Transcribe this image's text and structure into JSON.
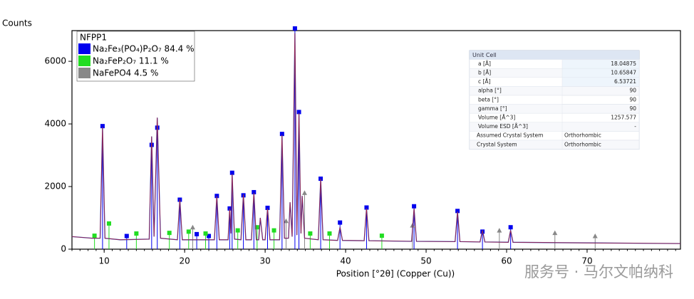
{
  "chart_data": {
    "type": "line",
    "y_label": "Counts",
    "x_label": "Position [°2θ] (Copper (Cu))",
    "legend_title": "NFPP1",
    "xlim": [
      6,
      81.6
    ],
    "ylim": [
      0,
      6980
    ],
    "xticks": [
      10,
      20,
      30,
      40,
      50,
      60,
      70
    ],
    "yticks": [
      0,
      2000,
      4000,
      6000
    ],
    "profile": {
      "color": "#2e2e9c",
      "x": [
        6,
        8.5,
        9.5,
        9.8,
        10.1,
        12,
        15.6,
        15.9,
        16.2,
        16.6,
        17.0,
        19.1,
        19.4,
        19.7,
        23.7,
        24.0,
        24.3,
        25.4,
        25.6,
        25.75,
        25.9,
        26.2,
        27.0,
        27.3,
        27.6,
        28.3,
        28.6,
        28.9,
        29.2,
        29.4,
        29.7,
        30.0,
        30.3,
        30.6,
        31.8,
        32.1,
        32.4,
        32.9,
        33.1,
        33.35,
        33.7,
        33.95,
        34.2,
        34.45,
        34.6,
        34.9,
        36.6,
        36.9,
        37.2,
        39.0,
        39.3,
        39.6,
        42.3,
        42.6,
        42.9,
        48.2,
        48.5,
        48.8,
        53.6,
        53.9,
        54.2,
        56.7,
        57.0,
        57.3,
        60.2,
        60.5,
        60.8,
        70,
        81.6
      ],
      "values": [
        400,
        350,
        350,
        3900,
        350,
        300,
        320,
        3600,
        400,
        4200,
        350,
        300,
        1600,
        300,
        300,
        1700,
        300,
        300,
        1300,
        500,
        2400,
        320,
        300,
        1750,
        300,
        300,
        1800,
        300,
        300,
        1000,
        300,
        300,
        1300,
        300,
        300,
        3650,
        350,
        350,
        1500,
        400,
        6900,
        450,
        4350,
        500,
        1700,
        350,
        300,
        2250,
        300,
        280,
        700,
        280,
        270,
        1300,
        270,
        250,
        1300,
        250,
        240,
        1200,
        240,
        230,
        600,
        230,
        220,
        600,
        220,
        200,
        180
      ]
    },
    "series": [
      {
        "name": "Na₂Fe₃(PO₄)P₂O₇ 84.4 %",
        "color": "#0000ee",
        "mark": "square",
        "x": [
          9.8,
          12.8,
          15.9,
          16.6,
          19.4,
          21.5,
          23.0,
          24.0,
          25.6,
          25.9,
          27.3,
          28.6,
          30.3,
          32.1,
          33.7,
          34.2,
          36.9,
          39.3,
          42.6,
          48.5,
          53.9,
          57.0,
          60.5
        ],
        "values": [
          3930,
          420,
          3330,
          3880,
          1580,
          480,
          420,
          1700,
          1300,
          2440,
          1720,
          1820,
          1320,
          3680,
          7050,
          4380,
          2250,
          850,
          1330,
          1370,
          1220,
          560,
          700
        ]
      },
      {
        "name": "Na₂FeP₂O₇ 11.1 %",
        "color": "#22dd22",
        "mark": "square",
        "x": [
          8.8,
          10.6,
          14.0,
          18.1,
          20.5,
          22.6,
          26.6,
          29.0,
          31.1,
          35.6,
          38.0,
          44.5
        ],
        "values": [
          430,
          820,
          500,
          520,
          560,
          500,
          600,
          700,
          600,
          500,
          500,
          430
        ]
      },
      {
        "name": "NaFePO4 4.5 %",
        "color": "#888888",
        "mark": "triangle",
        "x": [
          21.0,
          32.6,
          34.9,
          48.3,
          59.1,
          66.0,
          71.0
        ],
        "values": [
          700,
          900,
          1800,
          760,
          600,
          520,
          420
        ]
      }
    ]
  },
  "unit_cell": {
    "title": "Unit Cell",
    "rows": [
      [
        "a [Å]",
        "18.04875"
      ],
      [
        "b [Å]",
        "10.65847"
      ],
      [
        "c [Å]",
        "6.53721"
      ],
      [
        "alpha [°]",
        "90"
      ],
      [
        "beta [°]",
        "90"
      ],
      [
        "gamma [°]",
        "90"
      ],
      [
        "Volume [Å^3]",
        "1257.577"
      ],
      [
        "Volume ESD [Å^3]",
        "-"
      ],
      [
        "Assumed Crystal System",
        "Orthorhombic"
      ],
      [
        "Crystal System",
        "Orthorhombic"
      ]
    ]
  },
  "watermark": "服务号 · 马尔文帕纳科"
}
